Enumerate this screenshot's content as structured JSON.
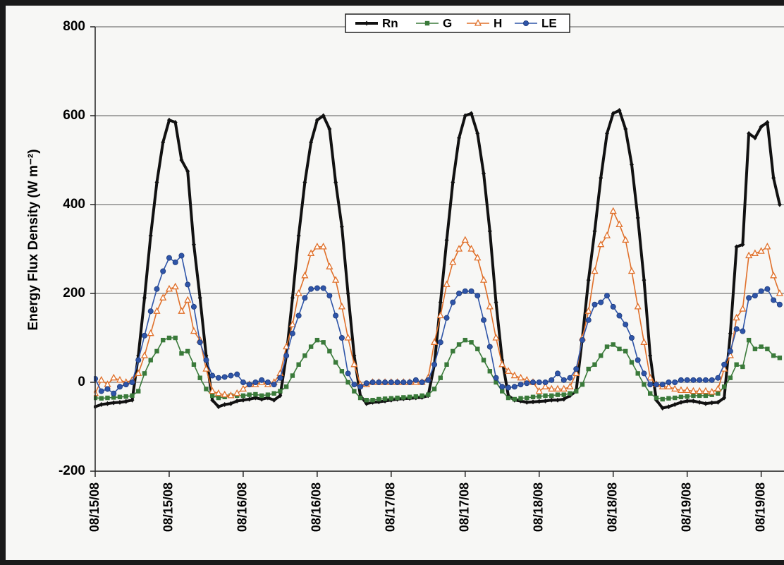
{
  "chart_data": {
    "type": "line",
    "y_label": "Energy Flux Density (W m⁻²)",
    "x": [
      0,
      1,
      2,
      3,
      4,
      5,
      6,
      7,
      8,
      9,
      10,
      11,
      12,
      13,
      14,
      15,
      16,
      17,
      18,
      19,
      20,
      21,
      22,
      23,
      24,
      25,
      26,
      27,
      28,
      29,
      30,
      31,
      32,
      33,
      34,
      35,
      36,
      37,
      38,
      39,
      40,
      41,
      42,
      43,
      44,
      45,
      46,
      47,
      48,
      49,
      50,
      51,
      52,
      53,
      54,
      55,
      56,
      57,
      58,
      59,
      60,
      61,
      62,
      63,
      64,
      65,
      66,
      67,
      68,
      69,
      70,
      71,
      72,
      73,
      74,
      75,
      76,
      77,
      78,
      79,
      80,
      81,
      82,
      83,
      84,
      85,
      86,
      87,
      88,
      89,
      90,
      91,
      92,
      93,
      94,
      95,
      96,
      97,
      98,
      99,
      100,
      101,
      102,
      103,
      104,
      105,
      106,
      107,
      108,
      109,
      110,
      111
    ],
    "series": [
      {
        "name": "Rn",
        "color": "#111111",
        "marker": "diamond",
        "values": [
          -55,
          -50,
          -48,
          -46,
          -45,
          -43,
          -40,
          60,
          190,
          330,
          450,
          540,
          590,
          585,
          500,
          475,
          310,
          190,
          60,
          -40,
          -55,
          -50,
          -48,
          -42,
          -40,
          -38,
          -35,
          -38,
          -35,
          -40,
          -30,
          60,
          190,
          330,
          450,
          540,
          590,
          600,
          570,
          450,
          350,
          200,
          60,
          -30,
          -48,
          -45,
          -44,
          -42,
          -40,
          -38,
          -37,
          -36,
          -35,
          -34,
          -30,
          40,
          180,
          320,
          450,
          550,
          600,
          605,
          560,
          470,
          340,
          180,
          50,
          -30,
          -40,
          -42,
          -45,
          -44,
          -43,
          -42,
          -40,
          -40,
          -38,
          -30,
          -20,
          100,
          230,
          340,
          460,
          560,
          605,
          612,
          570,
          490,
          370,
          230,
          60,
          -40,
          -58,
          -55,
          -50,
          -45,
          -42,
          -42,
          -45,
          -48,
          -46,
          -45,
          -35,
          110,
          305,
          310,
          560,
          550,
          575,
          585,
          460,
          400
        ]
      },
      {
        "name": "G",
        "color": "#3a7a3a",
        "marker": "square",
        "values": [
          -35,
          -36,
          -35,
          -34,
          -33,
          -32,
          -30,
          -20,
          20,
          50,
          70,
          95,
          100,
          100,
          65,
          70,
          40,
          10,
          -15,
          -30,
          -35,
          -33,
          -30,
          -30,
          -30,
          -28,
          -27,
          -30,
          -28,
          -25,
          -20,
          -10,
          15,
          40,
          60,
          80,
          95,
          90,
          70,
          45,
          25,
          0,
          -20,
          -35,
          -40,
          -40,
          -38,
          -37,
          -36,
          -35,
          -34,
          -33,
          -32,
          -30,
          -28,
          -15,
          10,
          40,
          70,
          85,
          95,
          90,
          75,
          50,
          25,
          0,
          -20,
          -35,
          -38,
          -36,
          -35,
          -33,
          -32,
          -30,
          -30,
          -28,
          -28,
          -25,
          -20,
          -5,
          30,
          40,
          60,
          80,
          85,
          75,
          70,
          45,
          20,
          -5,
          -25,
          -35,
          -38,
          -36,
          -35,
          -33,
          -32,
          -30,
          -30,
          -30,
          -28,
          -25,
          -10,
          10,
          40,
          35,
          95,
          75,
          80,
          75,
          60,
          55
        ]
      },
      {
        "name": "H",
        "color": "#e0702a",
        "marker": "triangle",
        "values": [
          -25,
          5,
          -5,
          10,
          5,
          0,
          5,
          20,
          60,
          110,
          160,
          190,
          210,
          215,
          160,
          185,
          115,
          95,
          30,
          -20,
          -25,
          -28,
          -30,
          -25,
          -15,
          -5,
          -5,
          0,
          -5,
          0,
          20,
          80,
          130,
          200,
          240,
          290,
          305,
          305,
          260,
          230,
          170,
          100,
          40,
          -5,
          -5,
          0,
          0,
          0,
          0,
          0,
          0,
          0,
          0,
          0,
          10,
          90,
          150,
          220,
          270,
          300,
          320,
          300,
          280,
          230,
          170,
          100,
          40,
          25,
          15,
          10,
          5,
          0,
          -20,
          -10,
          -15,
          -15,
          -15,
          -10,
          20,
          100,
          160,
          250,
          310,
          330,
          385,
          355,
          320,
          250,
          170,
          90,
          10,
          -5,
          -10,
          -10,
          -15,
          -18,
          -18,
          -20,
          -20,
          -20,
          -22,
          -15,
          30,
          60,
          145,
          165,
          285,
          290,
          295,
          305,
          240,
          200
        ]
      },
      {
        "name": "LE",
        "color": "#2f55a8",
        "marker": "circle",
        "values": [
          8,
          -20,
          -15,
          -25,
          -10,
          -5,
          0,
          50,
          105,
          160,
          210,
          250,
          280,
          270,
          285,
          220,
          170,
          90,
          50,
          15,
          10,
          12,
          15,
          18,
          0,
          -5,
          0,
          5,
          0,
          -5,
          10,
          60,
          110,
          150,
          190,
          210,
          212,
          212,
          195,
          150,
          100,
          20,
          -5,
          -10,
          -2,
          0,
          0,
          0,
          0,
          0,
          0,
          0,
          5,
          0,
          5,
          40,
          90,
          145,
          180,
          200,
          205,
          205,
          195,
          140,
          80,
          10,
          -10,
          -12,
          -10,
          -5,
          -2,
          0,
          0,
          0,
          5,
          20,
          5,
          10,
          30,
          95,
          140,
          175,
          180,
          195,
          170,
          150,
          130,
          100,
          50,
          20,
          -5,
          -5,
          -5,
          0,
          0,
          5,
          5,
          5,
          5,
          5,
          5,
          10,
          40,
          70,
          120,
          115,
          190,
          195,
          205,
          210,
          185,
          175
        ]
      }
    ],
    "xlim": [
      0,
      111.7
    ],
    "xticks": [
      {
        "value": 0,
        "label": "08/15/08"
      },
      {
        "value": 12,
        "label": "08/15/08"
      },
      {
        "value": 24,
        "label": "08/16/08"
      },
      {
        "value": 36,
        "label": "08/16/08"
      },
      {
        "value": 48,
        "label": "08/17/08"
      },
      {
        "value": 60,
        "label": "08/17/08"
      },
      {
        "value": 72,
        "label": "08/18/08"
      },
      {
        "value": 84,
        "label": "08/18/08"
      },
      {
        "value": 96,
        "label": "08/19/08"
      },
      {
        "value": 108,
        "label": "08/19/08"
      }
    ],
    "ylim": [
      -200,
      800
    ],
    "yticks": [
      -200,
      0,
      200,
      400,
      600,
      800
    ],
    "grid": true,
    "legend": "top"
  }
}
